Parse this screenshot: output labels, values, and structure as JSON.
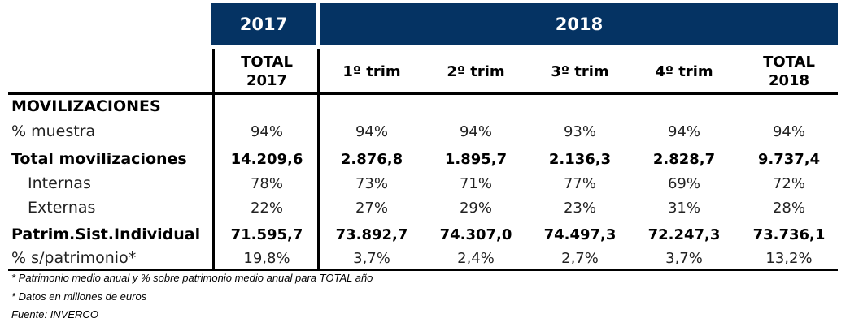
{
  "header": {
    "year1": "2017",
    "year2": "2018",
    "accent": "#053363"
  },
  "columns": [
    "TOTAL\n2017",
    "1º trim",
    "2º trim",
    "3º trim",
    "4º trim",
    "TOTAL\n2018"
  ],
  "columns_lines": [
    [
      "TOTAL",
      "2017"
    ],
    [
      "1º trim"
    ],
    [
      "2º trim"
    ],
    [
      "3º trim"
    ],
    [
      "4º trim"
    ],
    [
      "TOTAL",
      "2018"
    ]
  ],
  "section": "MOVILIZACIONES",
  "rows": [
    {
      "label": "% muestra",
      "values": [
        "94%",
        "94%",
        "94%",
        "93%",
        "94%",
        "94%"
      ]
    },
    {
      "label": "Total movilizaciones",
      "values": [
        "14.209,6",
        "2.876,8",
        "1.895,7",
        "2.136,3",
        "2.828,7",
        "9.737,4"
      ]
    },
    {
      "label": "Internas",
      "values": [
        "78%",
        "73%",
        "71%",
        "77%",
        "69%",
        "72%"
      ]
    },
    {
      "label": "Externas",
      "values": [
        "22%",
        "27%",
        "29%",
        "23%",
        "31%",
        "28%"
      ]
    },
    {
      "label": "Patrim.Sist.Individual",
      "values": [
        "71.595,7",
        "73.892,7",
        "74.307,0",
        "74.497,3",
        "72.247,3",
        "73.736,1"
      ]
    },
    {
      "label": "% s/patrimonio*",
      "values": [
        "19,8%",
        "3,7%",
        "2,4%",
        "2,7%",
        "3,7%",
        "13,2%"
      ]
    }
  ],
  "footnotes": [
    "* Patrimonio medio anual y % sobre patrimonio medio anual para TOTAL año",
    "* Datos en millones de euros",
    "Fuente: INVERCO"
  ]
}
